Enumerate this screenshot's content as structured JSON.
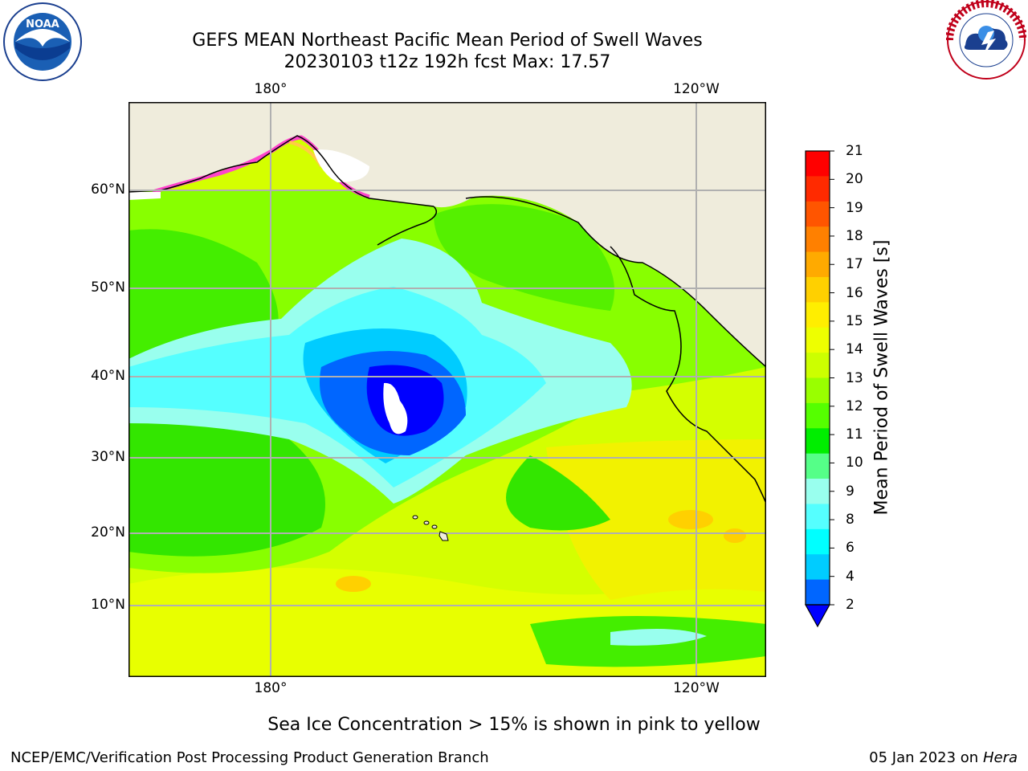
{
  "title": {
    "line1": "GEFS MEAN Northeast Pacific Mean Period of Swell Waves",
    "line2": "20230103 t12z 192h fcst   Max: 17.57"
  },
  "map": {
    "lat_labels": [
      "60°N",
      "50°N",
      "40°N",
      "30°N",
      "20°N",
      "10°N"
    ],
    "lon_labels_top": [
      "180°",
      "120°W"
    ],
    "lon_labels_bottom": [
      "180°",
      "120°W"
    ]
  },
  "colorbar": {
    "label": "Mean Period of Swell Waves [s]",
    "ticks": [
      "21",
      "20",
      "19",
      "18",
      "17",
      "16",
      "15",
      "14",
      "13",
      "12",
      "11",
      "10",
      "9",
      "8",
      "6",
      "4",
      "2"
    ],
    "colors_top_to_bottom": [
      "#ff0000",
      "#ff2a00",
      "#ff5500",
      "#ff8000",
      "#ffaa00",
      "#ffd000",
      "#ffee00",
      "#eeff00",
      "#ccff00",
      "#99ff00",
      "#55ff00",
      "#00ee00",
      "#55ff88",
      "#99ffee",
      "#55ffff",
      "#00ffff",
      "#00ccff",
      "#0066ff"
    ],
    "extend_color": "#0000ff"
  },
  "note": "Sea Ice Concentration > 15% is shown in pink to yellow",
  "footer": {
    "left": "NCEP/EMC/Verification Post Processing Product Generation Branch",
    "date": "05 Jan 2023 on ",
    "host": "Hera"
  },
  "logos": {
    "left": "NOAA",
    "right": "NATIONAL WEATHER SERVICE"
  }
}
